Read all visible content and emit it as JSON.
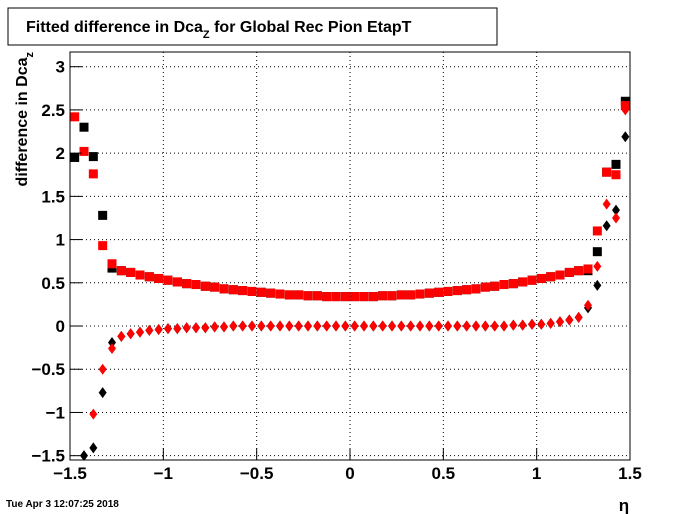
{
  "chart_data": {
    "type": "scatter",
    "title_parts": [
      "Fitted difference in Dca",
      "Z",
      " for Global Rec Pion EtapT"
    ],
    "ylabel_parts": [
      "difference in Dca",
      "z"
    ],
    "xlabel": "η",
    "timestamp": "Tue Apr  3 12:07:25 2018",
    "xlim": [
      -1.5,
      1.5
    ],
    "ylim": [
      -1.55,
      3.17
    ],
    "xticks": [
      {
        "value": -1.5,
        "label": "−1.5"
      },
      {
        "value": -1,
        "label": "−1"
      },
      {
        "value": -0.5,
        "label": "−0.5"
      },
      0,
      0.5,
      1,
      1.5
    ],
    "yticks": [
      {
        "value": -1.5,
        "label": "−1.5"
      },
      {
        "value": -1,
        "label": "−1"
      },
      {
        "value": -0.5,
        "label": "−0.5"
      },
      0,
      0.5,
      1,
      1.5,
      2,
      2.5,
      3
    ],
    "grid": true,
    "x": [
      -1.475,
      -1.425,
      -1.375,
      -1.325,
      -1.275,
      -1.225,
      -1.175,
      -1.125,
      -1.075,
      -1.025,
      -0.975,
      -0.925,
      -0.875,
      -0.825,
      -0.775,
      -0.725,
      -0.675,
      -0.625,
      -0.575,
      -0.525,
      -0.475,
      -0.425,
      -0.375,
      -0.325,
      -0.275,
      -0.225,
      -0.175,
      -0.125,
      -0.075,
      -0.025,
      0.025,
      0.075,
      0.125,
      0.175,
      0.225,
      0.275,
      0.325,
      0.375,
      0.425,
      0.475,
      0.525,
      0.575,
      0.625,
      0.675,
      0.725,
      0.775,
      0.825,
      0.875,
      0.925,
      0.975,
      1.025,
      1.075,
      1.125,
      1.175,
      1.225,
      1.275,
      1.325,
      1.375,
      1.425,
      1.475
    ],
    "series": [
      {
        "color": "#000000",
        "marker": "square",
        "values": [
          1.95,
          2.3,
          1.96,
          1.28,
          0.67,
          0.64,
          0.62,
          0.59,
          0.57,
          0.55,
          0.53,
          0.51,
          0.49,
          0.48,
          0.46,
          0.45,
          0.43,
          0.42,
          0.41,
          0.4,
          0.39,
          0.38,
          0.37,
          0.36,
          0.36,
          0.35,
          0.35,
          0.34,
          0.34,
          0.34,
          0.34,
          0.34,
          0.34,
          0.35,
          0.35,
          0.36,
          0.36,
          0.37,
          0.38,
          0.39,
          0.4,
          0.41,
          0.42,
          0.43,
          0.45,
          0.46,
          0.48,
          0.49,
          0.51,
          0.53,
          0.55,
          0.57,
          0.59,
          0.62,
          0.64,
          0.64,
          0.86,
          1.78,
          1.87,
          2.6
        ]
      },
      {
        "color": "#000000",
        "marker": "diamond",
        "values": [
          null,
          -1.5,
          -1.41,
          -0.77,
          -0.19,
          -0.12,
          -0.09,
          -0.07,
          -0.05,
          -0.04,
          -0.03,
          -0.03,
          -0.02,
          -0.02,
          -0.02,
          -0.01,
          -0.01,
          0,
          0,
          0,
          0,
          0,
          0,
          0,
          0,
          0,
          0,
          0,
          0,
          0,
          0,
          0,
          0,
          0,
          0,
          0,
          0,
          0,
          0,
          0,
          0,
          0,
          0,
          0,
          0,
          0,
          0,
          0.01,
          0.01,
          0.02,
          0.02,
          0.03,
          0.05,
          0.07,
          0.1,
          0.21,
          0.47,
          1.16,
          1.34,
          2.19
        ]
      },
      {
        "color": "#ff0000",
        "marker": "square",
        "values": [
          2.42,
          2.02,
          1.76,
          0.93,
          0.72,
          0.64,
          0.62,
          0.59,
          0.57,
          0.55,
          0.53,
          0.51,
          0.49,
          0.48,
          0.46,
          0.45,
          0.43,
          0.42,
          0.41,
          0.4,
          0.39,
          0.38,
          0.37,
          0.36,
          0.36,
          0.35,
          0.35,
          0.34,
          0.34,
          0.34,
          0.34,
          0.34,
          0.34,
          0.35,
          0.35,
          0.36,
          0.36,
          0.37,
          0.38,
          0.39,
          0.4,
          0.41,
          0.42,
          0.43,
          0.45,
          0.46,
          0.48,
          0.49,
          0.51,
          0.53,
          0.55,
          0.57,
          0.59,
          0.62,
          0.64,
          0.66,
          1.1,
          1.78,
          1.75,
          2.55
        ]
      },
      {
        "color": "#ff0000",
        "marker": "diamond",
        "values": [
          null,
          null,
          -1.02,
          -0.5,
          -0.26,
          -0.12,
          -0.09,
          -0.07,
          -0.05,
          -0.04,
          -0.03,
          -0.03,
          -0.02,
          -0.02,
          -0.02,
          -0.01,
          -0.01,
          0,
          0,
          0,
          0,
          0,
          0,
          0,
          0,
          0,
          0,
          0,
          0,
          0,
          0,
          0,
          0,
          0,
          0,
          0,
          0,
          0,
          0,
          0,
          0,
          0,
          0,
          0,
          0,
          0,
          0,
          0.01,
          0.01,
          0.02,
          0.02,
          0.03,
          0.05,
          0.07,
          0.1,
          0.24,
          0.69,
          1.41,
          1.25,
          2.5
        ]
      }
    ]
  }
}
